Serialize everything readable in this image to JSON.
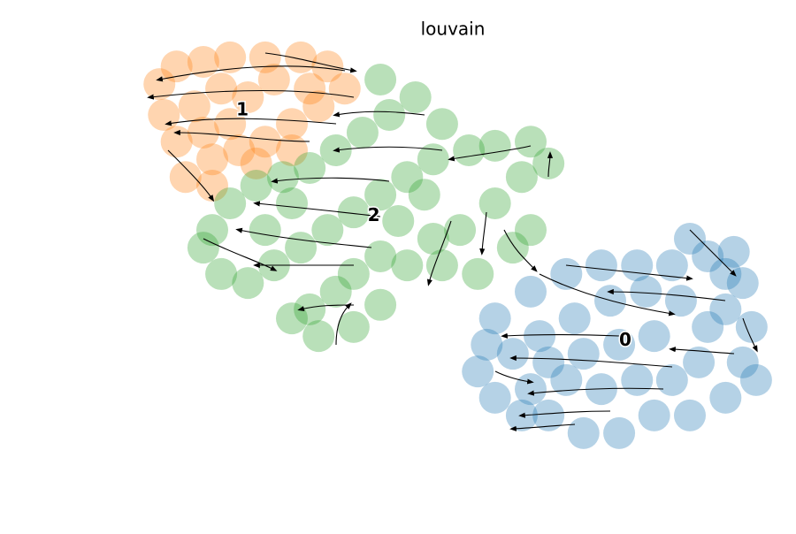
{
  "chart_data": {
    "type": "scatter",
    "title": "louvain",
    "xlim": [
      0,
      100
    ],
    "ylim": [
      0,
      100
    ],
    "series": [
      {
        "name": "0",
        "color": "#1f77b4",
        "x": [
          56.9,
          62.5,
          68.1,
          73.6,
          79.2,
          84.7,
          90.3,
          94.4,
          95.8,
          93.1,
          97.2,
          95.8,
          97.9,
          93.1,
          87.5,
          81.9,
          76.4,
          70.8,
          65.3,
          61.1,
          56.9,
          54.2,
          55.6,
          59.7,
          63.9,
          69.4,
          75.0,
          80.6,
          86.1,
          90.3,
          88.9,
          84.7,
          79.2,
          73.6,
          68.1,
          65.3,
          70.8,
          76.4,
          81.9,
          87.5,
          93.1,
          62.5
        ],
        "y": [
          33.3,
          39.8,
          44.1,
          46.2,
          46.2,
          46.2,
          48.4,
          49.5,
          41.9,
          35.5,
          31.2,
          22.6,
          18.3,
          14.0,
          9.7,
          9.7,
          5.4,
          5.4,
          9.7,
          9.7,
          14.0,
          20.4,
          26.9,
          24.7,
          29.0,
          33.3,
          37.6,
          39.8,
          37.6,
          31.2,
          22.6,
          18.3,
          18.3,
          16.1,
          18.3,
          22.6,
          24.7,
          26.9,
          29.0,
          52.7,
          44.1,
          16.1
        ]
      },
      {
        "name": "1",
        "color": "#ff7f0e",
        "x": [
          4.2,
          6.9,
          11.1,
          15.3,
          20.8,
          26.4,
          30.6,
          33.3,
          29.2,
          25.0,
          20.8,
          16.7,
          12.5,
          8.3,
          6.9,
          4.9,
          9.7,
          13.9,
          18.1,
          22.2,
          27.8,
          15.3,
          11.1,
          19.4,
          25.0,
          12.5
        ],
        "y": [
          90.3,
          94.6,
          95.7,
          96.8,
          96.8,
          96.8,
          94.6,
          89.2,
          84.9,
          80.6,
          76.3,
          74.2,
          72.0,
          67.7,
          76.3,
          82.8,
          84.9,
          89.2,
          87.1,
          91.4,
          89.2,
          80.6,
          78.5,
          71.0,
          74.2,
          65.6
        ]
      },
      {
        "name": "2",
        "color": "#2ca02c",
        "x": [
          38.9,
          44.4,
          48.6,
          40.3,
          36.1,
          31.9,
          27.8,
          23.6,
          19.4,
          15.3,
          12.5,
          11.1,
          13.9,
          18.1,
          22.2,
          26.4,
          30.6,
          34.7,
          38.9,
          43.1,
          47.2,
          52.8,
          56.9,
          62.5,
          65.3,
          61.1,
          56.9,
          51.4,
          47.2,
          43.1,
          38.9,
          34.7,
          31.9,
          27.8,
          25.0,
          29.2,
          34.7,
          38.9,
          48.6,
          54.2,
          59.7,
          62.5,
          45.8,
          41.7,
          25.0,
          20.8
        ],
        "y": [
          91.4,
          87.1,
          80.6,
          82.8,
          78.5,
          74.2,
          69.9,
          67.7,
          65.6,
          61.3,
          54.8,
          50.5,
          44.1,
          41.9,
          46.2,
          50.5,
          54.8,
          59.1,
          63.4,
          67.7,
          72.0,
          74.2,
          75.3,
          76.3,
          71.0,
          67.7,
          61.3,
          54.8,
          52.7,
          46.2,
          48.4,
          44.1,
          39.8,
          35.5,
          33.3,
          29.0,
          31.2,
          36.6,
          46.2,
          44.1,
          50.5,
          54.8,
          63.4,
          57.0,
          61.3,
          54.8
        ]
      }
    ]
  }
}
